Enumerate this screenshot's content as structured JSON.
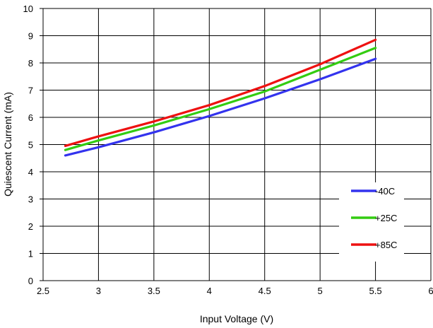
{
  "chart_data": {
    "type": "line",
    "title": "",
    "xlabel": "Input Voltage (V)",
    "ylabel": "Quiescent Current (mA)",
    "xlim": [
      2.5,
      6
    ],
    "ylim": [
      0,
      10
    ],
    "x_ticks": [
      "2.5",
      "3",
      "3.5",
      "4",
      "4.5",
      "5",
      "5.5",
      "6"
    ],
    "y_ticks": [
      "0",
      "1",
      "2",
      "3",
      "4",
      "5",
      "6",
      "7",
      "8",
      "9",
      "10"
    ],
    "grid": true,
    "legend_position": "lower-right",
    "x": [
      2.7,
      3.0,
      3.5,
      4.0,
      4.5,
      5.0,
      5.5
    ],
    "series": [
      {
        "name": "-40C",
        "color": "#3333ee",
        "values": [
          4.6,
          4.9,
          5.45,
          6.05,
          6.7,
          7.4,
          8.15
        ]
      },
      {
        "name": "+25C",
        "color": "#33cc11",
        "values": [
          4.8,
          5.15,
          5.7,
          6.3,
          6.95,
          7.75,
          8.55
        ]
      },
      {
        "name": "+85C",
        "color": "#ee1111",
        "values": [
          4.95,
          5.3,
          5.85,
          6.45,
          7.15,
          7.95,
          8.85
        ]
      }
    ]
  }
}
